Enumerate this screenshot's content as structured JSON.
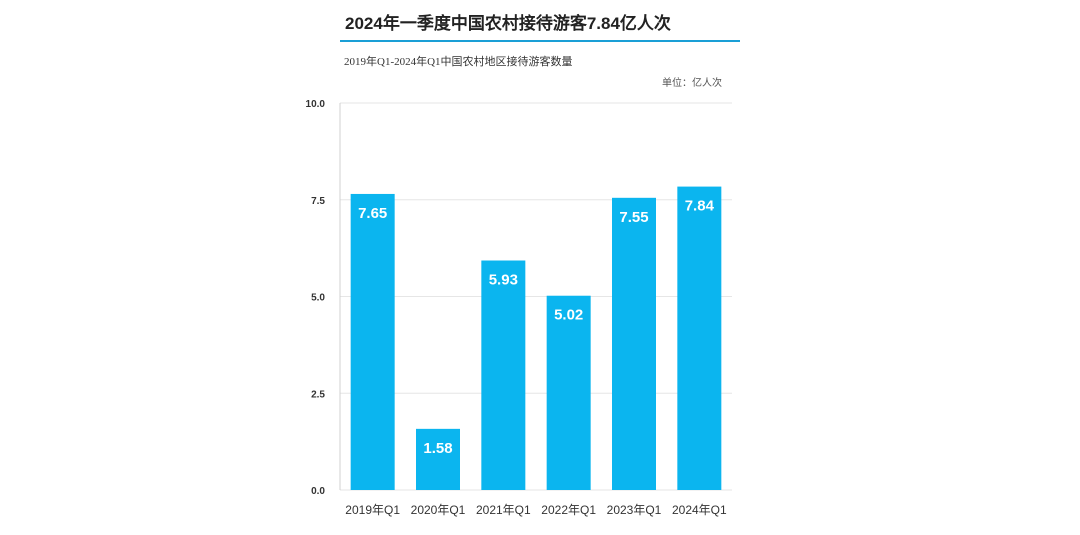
{
  "header": {
    "title": "2024年一季度中国农村接待游客7.84亿人次",
    "subtitle": "2019年Q1-2024年Q1中国农村地区接待游客数量",
    "unit": "单位：亿人次"
  },
  "colors": {
    "bar": "#0bb5ef",
    "rule": "#1a9fd6",
    "grid": "#e6e6e6"
  },
  "chart_data": {
    "type": "bar",
    "title": "2024年一季度中国农村接待游客7.84亿人次",
    "subtitle": "2019年Q1-2024年Q1中国农村地区接待游客数量",
    "unit": "单位：亿人次",
    "categories": [
      "2019年Q1",
      "2020年Q1",
      "2021年Q1",
      "2022年Q1",
      "2023年Q1",
      "2024年Q1"
    ],
    "values": [
      7.65,
      1.58,
      5.93,
      5.02,
      7.55,
      7.84
    ],
    "value_labels": [
      "7.65",
      "1.58",
      "5.93",
      "5.02",
      "7.55",
      "7.84"
    ],
    "y_ticks": [
      "0.0",
      "2.5",
      "5.0",
      "7.5",
      "10.0"
    ],
    "ylim": [
      0,
      10
    ],
    "grid": false,
    "legend": "none"
  }
}
